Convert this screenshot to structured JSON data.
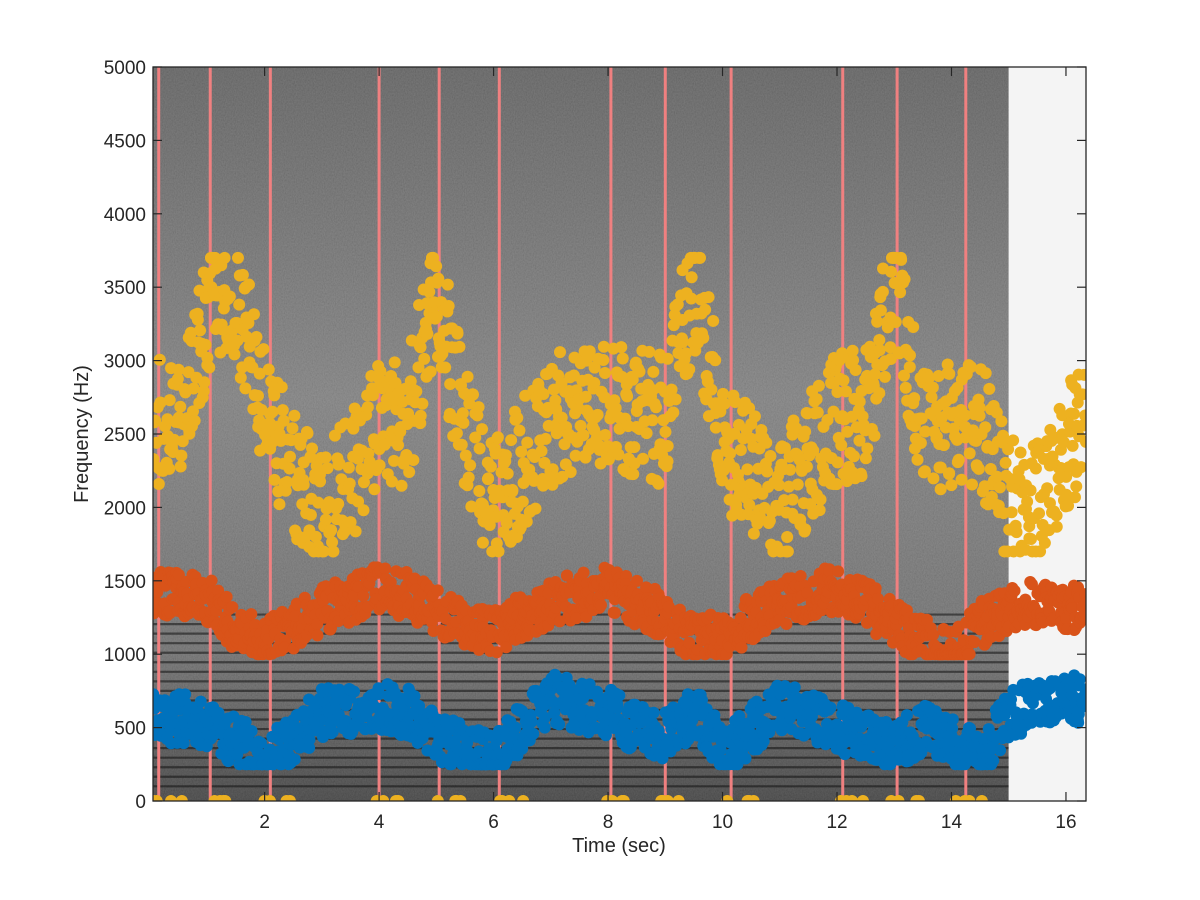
{
  "chart_data": {
    "type": "scatter",
    "title": "",
    "xlabel": "Time (sec)",
    "ylabel": "Frequency (Hz)",
    "xlim": [
      0.05,
      16.35
    ],
    "ylim": [
      0,
      5000
    ],
    "x_ticks": [
      2,
      4,
      6,
      8,
      10,
      12,
      14,
      16
    ],
    "y_ticks": [
      0,
      500,
      1000,
      1500,
      2000,
      2500,
      3000,
      3500,
      4000,
      4500,
      5000
    ],
    "background": "grayscale spectrogram, signal ends near 15 sec",
    "spectrogram_end": 15.0,
    "segment_boundaries": [
      0.15,
      1.05,
      2.1,
      4.0,
      5.05,
      6.1,
      8.05,
      9.0,
      10.15,
      12.1,
      13.05,
      14.25
    ],
    "colors": {
      "boundary": "#f08080",
      "series1": "#0072bd",
      "series2": "#d95319",
      "series3": "#edb120"
    },
    "series": [
      {
        "color": "#0072bd",
        "freq_range": [
          250,
          1000
        ],
        "anchors": [
          [
            0.05,
            560
          ],
          [
            0.6,
            560
          ],
          [
            1.1,
            480
          ],
          [
            1.5,
            400
          ],
          [
            2.1,
            300
          ],
          [
            3.0,
            600
          ],
          [
            4.0,
            650
          ],
          [
            4.5,
            600
          ],
          [
            5.0,
            450
          ],
          [
            5.5,
            350
          ],
          [
            6.0,
            300
          ],
          [
            7.0,
            700
          ],
          [
            8.0,
            600
          ],
          [
            8.5,
            500
          ],
          [
            9.0,
            450
          ],
          [
            9.5,
            600
          ],
          [
            10.1,
            350
          ],
          [
            11.0,
            650
          ],
          [
            12.0,
            500
          ],
          [
            12.5,
            450
          ],
          [
            13.0,
            350
          ],
          [
            13.5,
            500
          ],
          [
            14.0,
            400
          ],
          [
            14.5,
            300
          ],
          [
            15.0,
            600
          ],
          [
            15.5,
            650
          ],
          [
            16.35,
            700
          ]
        ]
      },
      {
        "color": "#d95319",
        "freq_range": [
          1000,
          1700
        ],
        "anchors": [
          [
            0.05,
            1420
          ],
          [
            0.6,
            1400
          ],
          [
            1.1,
            1350
          ],
          [
            1.5,
            1150
          ],
          [
            2.1,
            1100
          ],
          [
            3.0,
            1300
          ],
          [
            4.0,
            1450
          ],
          [
            4.5,
            1400
          ],
          [
            5.0,
            1300
          ],
          [
            5.5,
            1200
          ],
          [
            6.0,
            1150
          ],
          [
            7.0,
            1350
          ],
          [
            8.0,
            1450
          ],
          [
            8.5,
            1350
          ],
          [
            9.0,
            1250
          ],
          [
            9.5,
            1100
          ],
          [
            10.1,
            1150
          ],
          [
            11.0,
            1350
          ],
          [
            12.0,
            1450
          ],
          [
            12.5,
            1350
          ],
          [
            13.0,
            1200
          ],
          [
            13.5,
            1100
          ],
          [
            14.0,
            1000
          ],
          [
            14.5,
            1200
          ],
          [
            15.0,
            1300
          ],
          [
            15.5,
            1350
          ],
          [
            16.35,
            1300
          ]
        ]
      },
      {
        "color": "#edb120",
        "freq_range": [
          1700,
          3700
        ],
        "anchors": [
          [
            0.05,
            2600
          ],
          [
            0.6,
            2650
          ],
          [
            1.1,
            3450
          ],
          [
            1.5,
            3450
          ],
          [
            2.1,
            2550
          ],
          [
            3.0,
            1900
          ],
          [
            4.0,
            2550
          ],
          [
            4.5,
            2600
          ],
          [
            5.0,
            3500
          ],
          [
            5.5,
            2500
          ],
          [
            6.0,
            2000
          ],
          [
            7.0,
            2600
          ],
          [
            8.0,
            2650
          ],
          [
            8.5,
            2650
          ],
          [
            9.0,
            2600
          ],
          [
            9.5,
            3550
          ],
          [
            10.1,
            2400
          ],
          [
            11.0,
            2000
          ],
          [
            12.0,
            2600
          ],
          [
            12.5,
            2650
          ],
          [
            13.0,
            3550
          ],
          [
            13.5,
            2500
          ],
          [
            14.0,
            2550
          ],
          [
            14.5,
            2600
          ],
          [
            15.0,
            2000
          ],
          [
            15.5,
            2050
          ],
          [
            16.35,
            2600
          ]
        ]
      }
    ]
  }
}
